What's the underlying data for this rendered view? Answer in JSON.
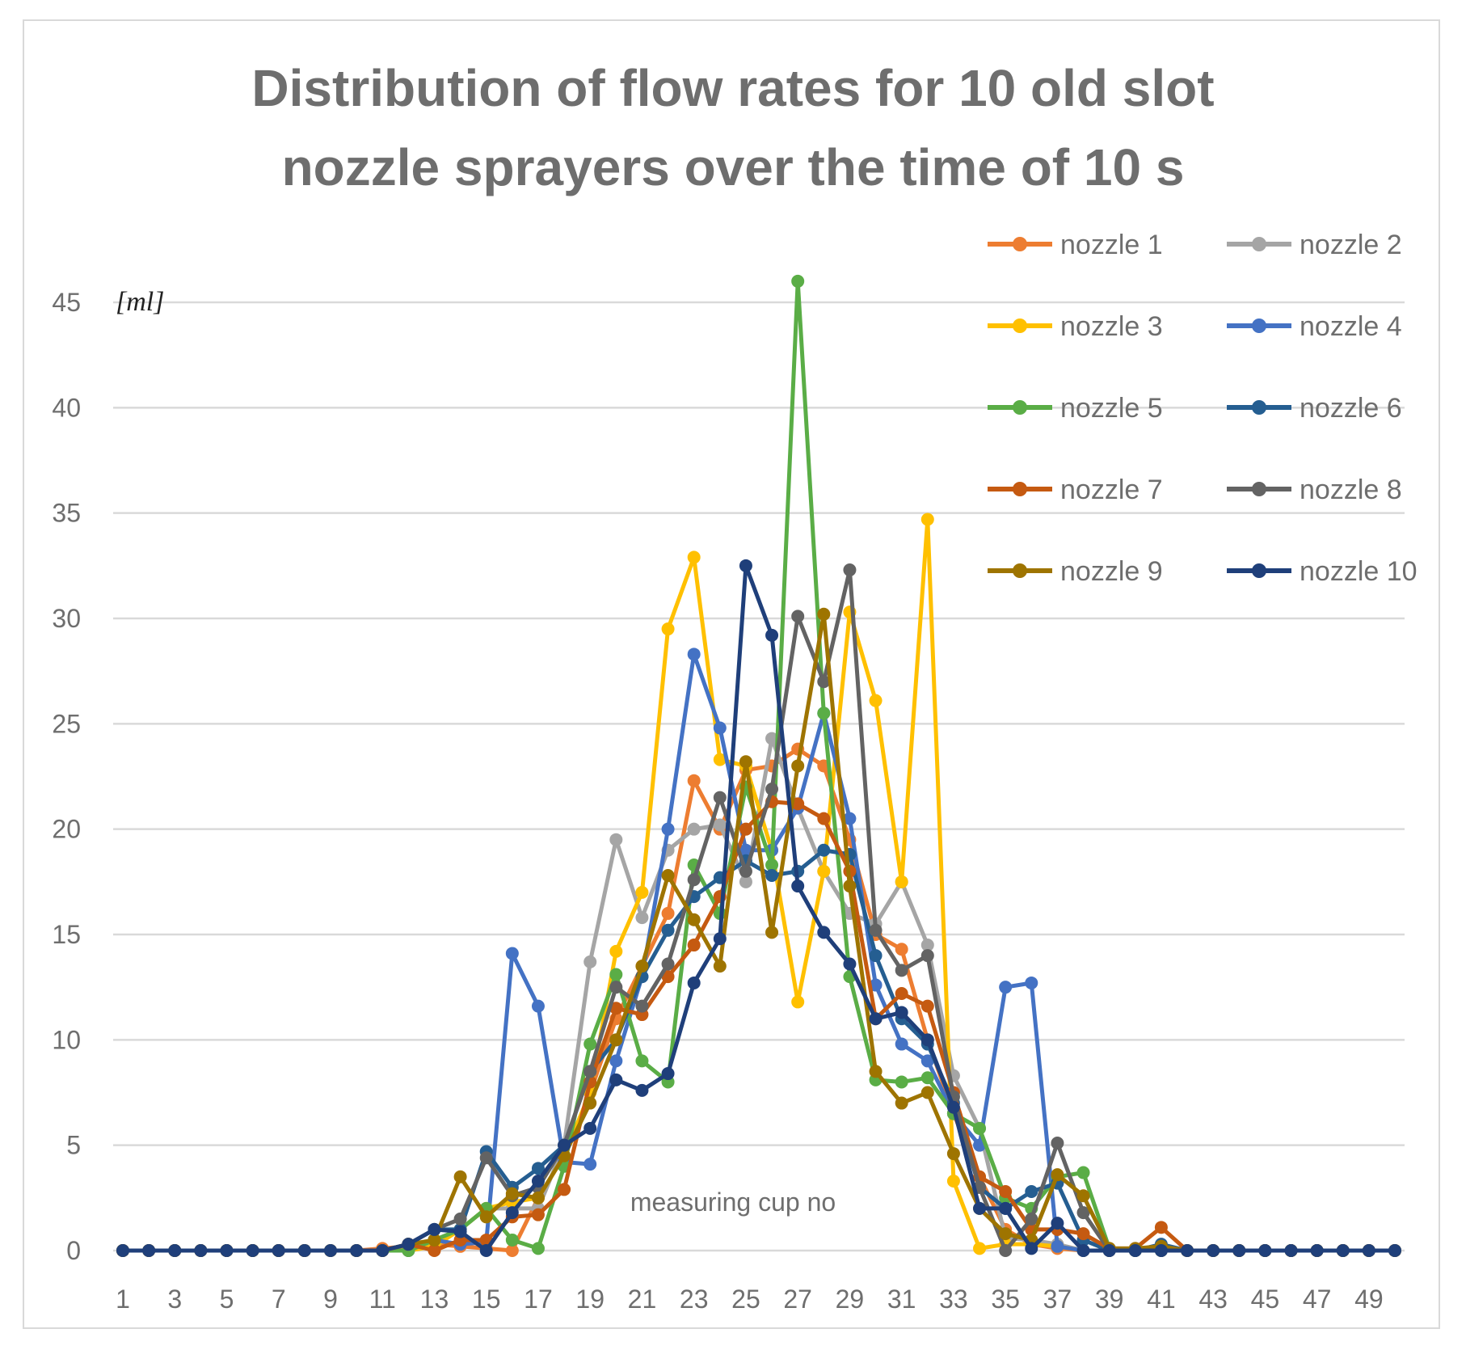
{
  "chart_data": {
    "type": "line",
    "title_line1": "Distribution of flow rates for 10 old slot",
    "title_line2": "nozzle sprayers over the time of 10 s",
    "ylabel": "[ml]",
    "xlabel": "measuring cup no",
    "ylim": [
      0,
      45
    ],
    "yticks": [
      "0",
      "5",
      "10",
      "15",
      "20",
      "25",
      "30",
      "35",
      "40",
      "45"
    ],
    "xticks": [
      "1",
      "3",
      "5",
      "7",
      "9",
      "11",
      "13",
      "15",
      "17",
      "19",
      "21",
      "23",
      "25",
      "27",
      "29",
      "31",
      "33",
      "35",
      "37",
      "39",
      "41",
      "43",
      "45",
      "47",
      "49"
    ],
    "grid": true,
    "legend_position": "top-right",
    "x": [
      1,
      2,
      3,
      4,
      5,
      6,
      7,
      8,
      9,
      10,
      11,
      12,
      13,
      14,
      15,
      16,
      17,
      18,
      19,
      20,
      21,
      22,
      23,
      24,
      25,
      26,
      27,
      28,
      29,
      30,
      31,
      32,
      33,
      34,
      35,
      36,
      37,
      38,
      39,
      40,
      41,
      42,
      43,
      44,
      45,
      46,
      47,
      48,
      49,
      50
    ],
    "series": [
      {
        "name": "nozzle 1",
        "color": "#ed7d31",
        "values": [
          0,
          0,
          0,
          0,
          0,
          0,
          0,
          0,
          0,
          0,
          0.1,
          0.2,
          0.3,
          0.2,
          0.1,
          0.0,
          2.5,
          4.5,
          7.5,
          11.0,
          13.5,
          16.0,
          22.3,
          20.0,
          22.8,
          23.0,
          23.8,
          23.0,
          19.5,
          15.0,
          14.3,
          10.0,
          6.5,
          3.5,
          1.0,
          0.3,
          0.1,
          0,
          0,
          0,
          0,
          0,
          0,
          0,
          0,
          0,
          0,
          0,
          0,
          0
        ]
      },
      {
        "name": "nozzle 2",
        "color": "#a5a5a5",
        "values": [
          0,
          0,
          0,
          0,
          0,
          0,
          0,
          0,
          0,
          0,
          0,
          0,
          0.5,
          1.0,
          2.0,
          2.0,
          2.0,
          5.0,
          13.7,
          19.5,
          15.8,
          19.0,
          20.0,
          20.2,
          17.5,
          24.3,
          21.0,
          18.0,
          16.0,
          15.5,
          17.5,
          14.5,
          8.3,
          5.8,
          0.6,
          0.5,
          0.3,
          0,
          0,
          0,
          0,
          0,
          0,
          0,
          0,
          0,
          0,
          0,
          0,
          0
        ]
      },
      {
        "name": "nozzle 3",
        "color": "#ffc000",
        "values": [
          0,
          0,
          0,
          0,
          0,
          0,
          0,
          0,
          0,
          0,
          0,
          0,
          0.2,
          1.0,
          2.0,
          2.3,
          2.5,
          4.5,
          7.5,
          14.2,
          17.0,
          29.5,
          32.9,
          23.3,
          23.0,
          19.0,
          11.8,
          18.0,
          30.3,
          26.1,
          17.5,
          34.7,
          3.3,
          0.1,
          0.3,
          0.3,
          0.2,
          0,
          0,
          0,
          0,
          0,
          0,
          0,
          0,
          0,
          0,
          0,
          0,
          0
        ]
      },
      {
        "name": "nozzle 4",
        "color": "#4472c4",
        "values": [
          0,
          0,
          0,
          0,
          0,
          0,
          0,
          0,
          0,
          0,
          0,
          0,
          0.5,
          0.3,
          0.4,
          14.1,
          11.6,
          4.2,
          4.1,
          9.0,
          13.0,
          20.0,
          28.3,
          24.8,
          19.0,
          19.0,
          21.0,
          25.5,
          20.5,
          12.6,
          9.8,
          9.0,
          6.5,
          5.0,
          12.5,
          12.7,
          0.2,
          0,
          0,
          0,
          0,
          0,
          0,
          0,
          0,
          0,
          0,
          0,
          0,
          0
        ]
      },
      {
        "name": "nozzle 5",
        "color": "#5aad46",
        "values": [
          0,
          0,
          0,
          0,
          0,
          0,
          0,
          0,
          0,
          0,
          0,
          0,
          0.5,
          1.0,
          2.0,
          0.5,
          0.1,
          4.0,
          9.8,
          13.1,
          9.0,
          8.0,
          18.3,
          16.0,
          22.0,
          18.3,
          46.0,
          25.5,
          13.0,
          8.1,
          8.0,
          8.2,
          6.5,
          5.8,
          2.5,
          2.0,
          3.5,
          3.7,
          0.1,
          0,
          0,
          0,
          0,
          0,
          0,
          0,
          0,
          0,
          0,
          0
        ]
      },
      {
        "name": "nozzle 6",
        "color": "#255e91",
        "values": [
          0,
          0,
          0,
          0,
          0,
          0,
          0,
          0,
          0,
          0,
          0,
          0.3,
          1.0,
          1.0,
          4.7,
          3.0,
          3.9,
          5.0,
          8.5,
          10.0,
          13.0,
          15.2,
          16.8,
          17.7,
          18.5,
          17.8,
          18.0,
          19.0,
          18.8,
          14.0,
          11.0,
          9.8,
          7.0,
          3.0,
          2.0,
          2.8,
          3.2,
          0.5,
          0,
          0,
          0.3,
          0,
          0,
          0,
          0,
          0,
          0,
          0,
          0,
          0
        ]
      },
      {
        "name": "nozzle 7",
        "color": "#c55a11",
        "values": [
          0,
          0,
          0,
          0,
          0,
          0,
          0,
          0,
          0,
          0,
          0,
          0.3,
          0.0,
          0.5,
          0.5,
          1.6,
          1.7,
          2.9,
          8.0,
          11.5,
          11.2,
          13.0,
          14.5,
          16.8,
          20.0,
          21.3,
          21.2,
          20.5,
          18.0,
          11.0,
          12.2,
          11.6,
          7.5,
          3.5,
          2.8,
          1.0,
          1.0,
          0.8,
          0.1,
          0.1,
          1.1,
          0,
          0,
          0,
          0,
          0,
          0,
          0,
          0,
          0
        ]
      },
      {
        "name": "nozzle 8",
        "color": "#636363",
        "values": [
          0,
          0,
          0,
          0,
          0,
          0,
          0,
          0,
          0,
          0,
          0,
          0.3,
          1.0,
          1.5,
          4.4,
          2.6,
          3.0,
          5.0,
          8.5,
          12.5,
          11.6,
          13.6,
          17.6,
          21.5,
          18.0,
          21.9,
          30.1,
          27.0,
          32.3,
          15.2,
          13.3,
          14.0,
          7.3,
          3.0,
          0.0,
          1.5,
          5.1,
          1.8,
          0,
          0,
          0,
          0,
          0,
          0,
          0,
          0,
          0,
          0,
          0,
          0
        ]
      },
      {
        "name": "nozzle 9",
        "color": "#9e7400",
        "values": [
          0,
          0,
          0,
          0,
          0,
          0,
          0,
          0,
          0,
          0,
          0,
          0.3,
          0.5,
          3.5,
          1.6,
          2.7,
          2.5,
          4.5,
          7.0,
          10.0,
          13.5,
          17.8,
          15.7,
          13.5,
          23.2,
          15.1,
          23.0,
          30.2,
          17.3,
          8.5,
          7.0,
          7.5,
          4.6,
          2.0,
          0.8,
          0.5,
          3.6,
          2.6,
          0.1,
          0.1,
          0.2,
          0,
          0,
          0,
          0,
          0,
          0,
          0,
          0,
          0
        ]
      },
      {
        "name": "nozzle 10",
        "color": "#1f3f7a",
        "values": [
          0,
          0,
          0,
          0,
          0,
          0,
          0,
          0,
          0,
          0,
          0,
          0.3,
          1.0,
          0.9,
          0.0,
          1.8,
          3.3,
          5.0,
          5.8,
          8.1,
          7.6,
          8.4,
          12.7,
          14.8,
          32.5,
          29.2,
          17.3,
          15.1,
          13.6,
          11.0,
          11.3,
          10.0,
          6.8,
          2.0,
          2.0,
          0.1,
          1.3,
          0,
          0,
          0,
          0,
          0,
          0,
          0,
          0,
          0,
          0,
          0,
          0,
          0
        ]
      }
    ]
  }
}
